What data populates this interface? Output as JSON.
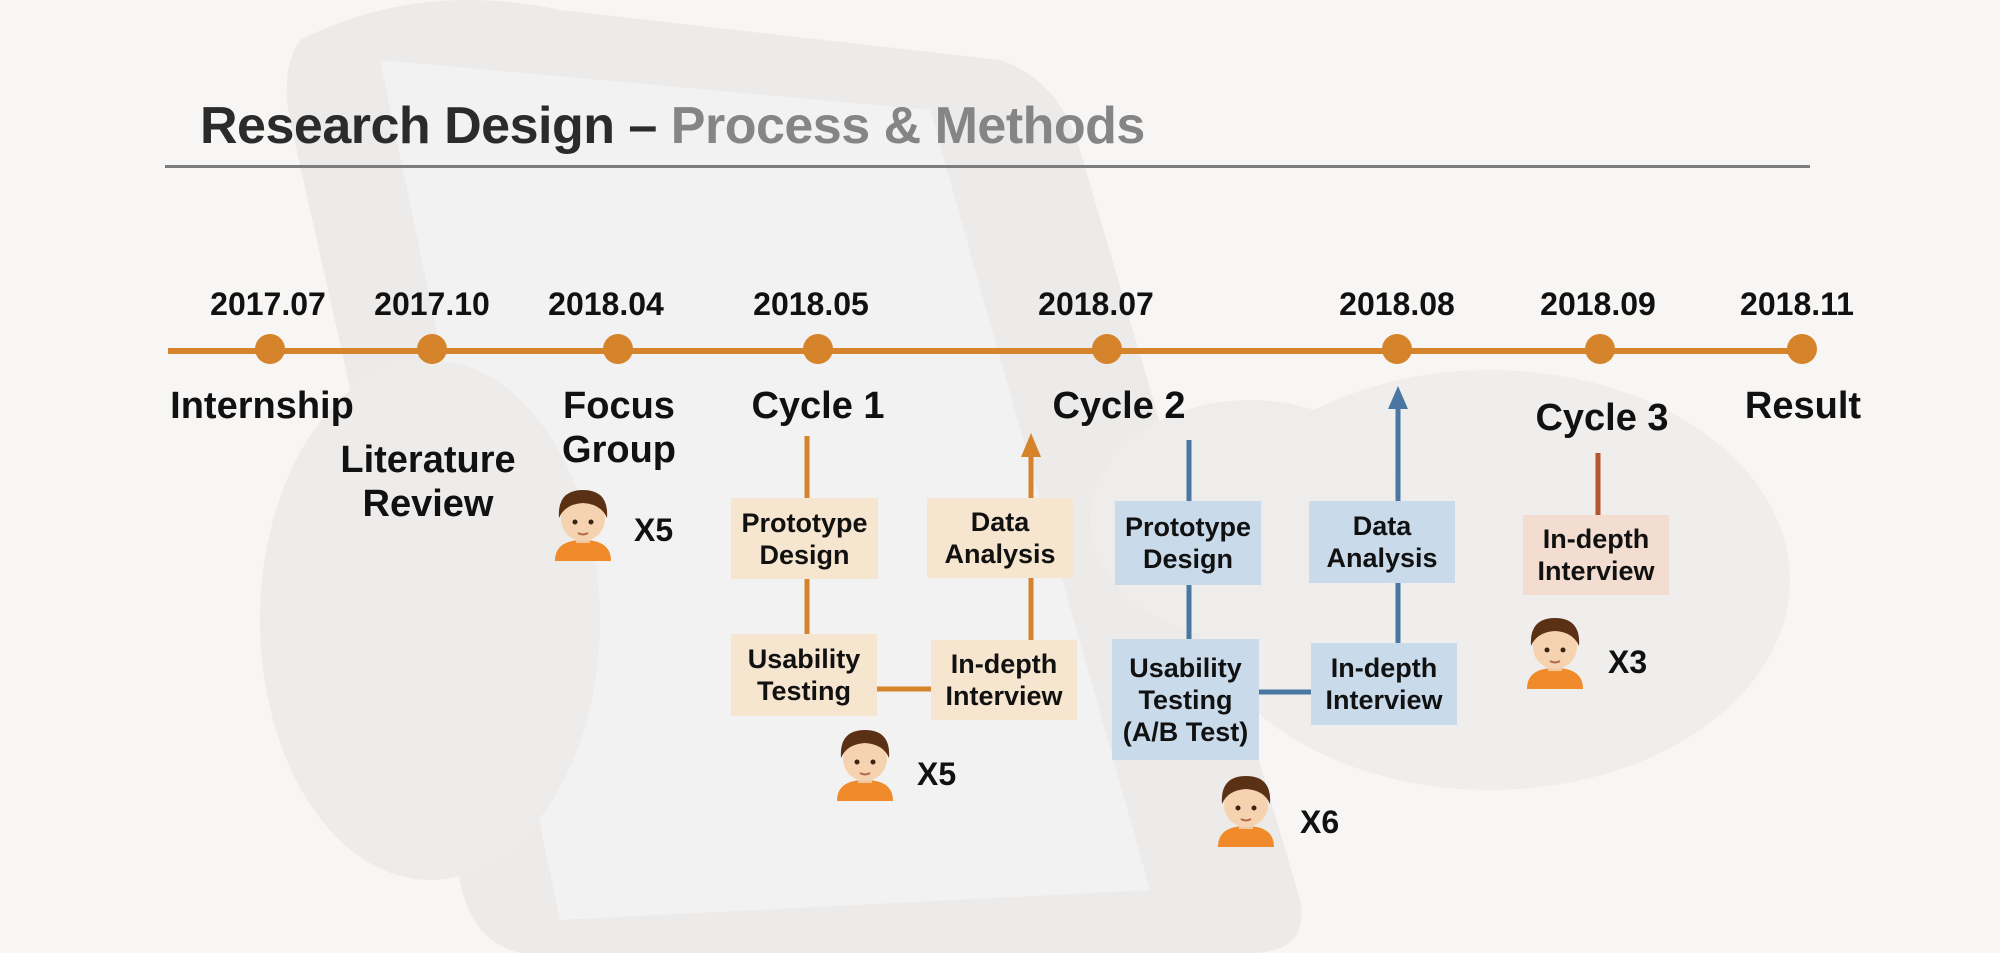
{
  "title": {
    "main": "Research Design – ",
    "accent": "Process & Methods"
  },
  "colors": {
    "timeline": "#d6842c",
    "cycle1": "#d6842c",
    "cycle2": "#4a77a1",
    "cycle3": "#b5542e",
    "rule": "#7d7d7d"
  },
  "timeline": {
    "dates": [
      "2017.07",
      "2017.10",
      "2018.04",
      "2018.05",
      "2018.07",
      "2018.08",
      "2018.09",
      "2018.11"
    ]
  },
  "milestones": {
    "internship": "Internship",
    "literature_review": [
      "Literature",
      "Review"
    ],
    "focus_group": [
      "Focus",
      "Group"
    ],
    "cycle1": "Cycle 1",
    "cycle2": "Cycle 2",
    "cycle3": "Cycle 3",
    "result": "Result"
  },
  "cycle1": {
    "prototype": [
      "Prototype",
      "Design"
    ],
    "usability": [
      "Usability",
      "Testing"
    ],
    "interview": [
      "In-depth",
      "Interview"
    ],
    "analysis": [
      "Data",
      "Analysis"
    ]
  },
  "cycle2": {
    "prototype": [
      "Prototype",
      "Design"
    ],
    "usability": [
      "Usability",
      "Testing",
      "(A/B Test)"
    ],
    "interview": [
      "In-depth",
      "Interview"
    ],
    "analysis": [
      "Data",
      "Analysis"
    ]
  },
  "cycle3": {
    "interview": [
      "In-depth",
      "Interview"
    ]
  },
  "participants": {
    "focus_group": "X5",
    "cycle1": "X5",
    "cycle2": "X6",
    "cycle3": "X3"
  },
  "icons": {
    "person": "user-avatar-icon",
    "arrow": "arrow-up-icon"
  }
}
